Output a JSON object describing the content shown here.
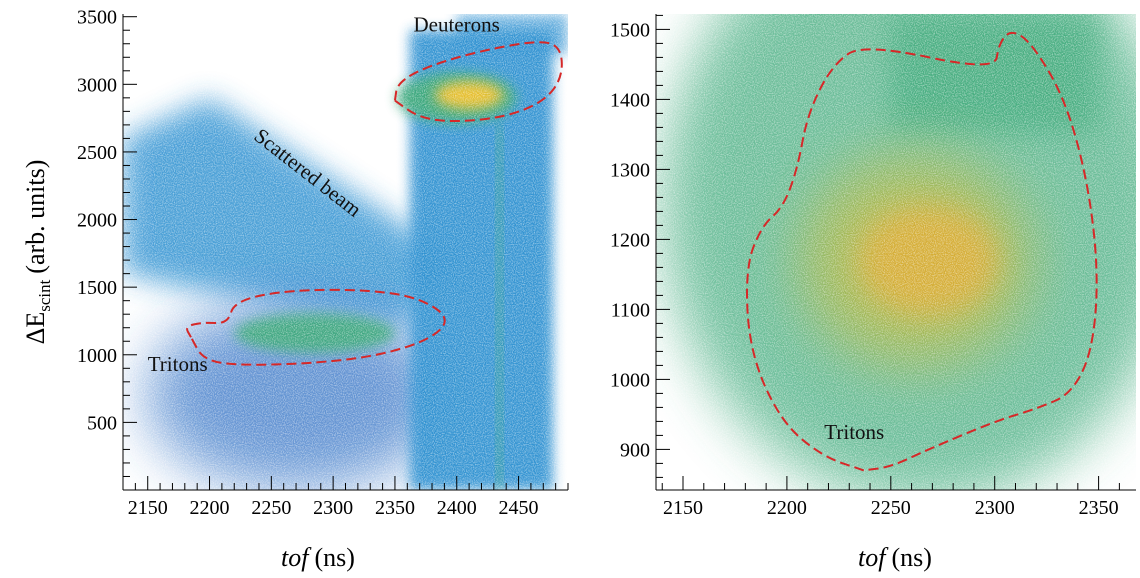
{
  "colors": {
    "blue_low": "#2f6fc4",
    "blue_mid": "#2a8fd0",
    "green": "#3aa878",
    "yellow": "#f2c12a",
    "orange": "#f5a623",
    "cut": "#d62828"
  },
  "chart_data": [
    {
      "type": "heatmap",
      "panel": "left",
      "xlabel_italic": "tof",
      "xlabel_unit": "(ns)",
      "ylabel_main": "ΔE",
      "ylabel_sub": "scint",
      "ylabel_unit": "(arb. units)",
      "xlim": [
        2130,
        2490
      ],
      "ylim": [
        0,
        3520
      ],
      "x_ticks": [
        2150,
        2200,
        2250,
        2300,
        2350,
        2400,
        2450
      ],
      "y_ticks": [
        500,
        1000,
        1500,
        2000,
        2500,
        3000,
        3500
      ],
      "annotations": [
        {
          "text": "Deuterons",
          "x": 2365,
          "y": 3390
        },
        {
          "text": "Scattered beam",
          "x": 2235,
          "y": 2600
        },
        {
          "text": "Tritons",
          "x": 2150,
          "y": 880
        }
      ],
      "cuts": [
        {
          "name": "Deuterons",
          "points": [
            [
              2350,
              2880
            ],
            [
              2352,
              3010
            ],
            [
              2375,
              3130
            ],
            [
              2420,
              3250
            ],
            [
              2470,
              3330
            ],
            [
              2485,
              3260
            ],
            [
              2485,
              3040
            ],
            [
              2470,
              2870
            ],
            [
              2440,
              2760
            ],
            [
              2400,
              2720
            ],
            [
              2370,
              2750
            ],
            [
              2350,
              2880
            ]
          ]
        },
        {
          "name": "Tritons",
          "points": [
            [
              2185,
              1130
            ],
            [
              2180,
              1210
            ],
            [
              2195,
              1240
            ],
            [
              2215,
              1230
            ],
            [
              2220,
              1400
            ],
            [
              2265,
              1480
            ],
            [
              2330,
              1480
            ],
            [
              2370,
              1420
            ],
            [
              2395,
              1270
            ],
            [
              2380,
              1120
            ],
            [
              2340,
              1000
            ],
            [
              2290,
              940
            ],
            [
              2225,
              920
            ],
            [
              2195,
              960
            ],
            [
              2185,
              1130
            ]
          ]
        }
      ],
      "hotspots": [
        {
          "x": 2410,
          "y": 2920,
          "level": "max"
        },
        {
          "x": 2265,
          "y": 1130,
          "level": "mid"
        }
      ]
    },
    {
      "type": "heatmap",
      "panel": "right",
      "xlabel_italic": "tof",
      "xlabel_unit": "(ns)",
      "xlim": [
        2137,
        2368
      ],
      "ylim": [
        842,
        1522
      ],
      "x_ticks": [
        2150,
        2200,
        2250,
        2300,
        2350
      ],
      "y_ticks": [
        900,
        1000,
        1100,
        1200,
        1300,
        1400,
        1500
      ],
      "annotations": [
        {
          "text": "Tritons",
          "x": 2218,
          "y": 915
        }
      ],
      "cuts": [
        {
          "name": "Tritons",
          "points": [
            [
              2237,
              870
            ],
            [
              2217,
              890
            ],
            [
              2197,
              940
            ],
            [
              2182,
              1040
            ],
            [
              2180,
              1160
            ],
            [
              2188,
              1220
            ],
            [
              2198,
              1245
            ],
            [
              2205,
              1300
            ],
            [
              2210,
              1380
            ],
            [
              2222,
              1450
            ],
            [
              2237,
              1480
            ],
            [
              2300,
              1440
            ],
            [
              2302,
              1480
            ],
            [
              2308,
              1500
            ],
            [
              2318,
              1480
            ],
            [
              2334,
              1400
            ],
            [
              2345,
              1280
            ],
            [
              2350,
              1150
            ],
            [
              2347,
              1040
            ],
            [
              2337,
              980
            ],
            [
              2322,
              960
            ],
            [
              2300,
              940
            ],
            [
              2268,
              900
            ],
            [
              2250,
              875
            ],
            [
              2237,
              870
            ]
          ]
        }
      ],
      "hotspots": [
        {
          "x": 2265,
          "y": 1160,
          "level": "max"
        }
      ]
    }
  ]
}
